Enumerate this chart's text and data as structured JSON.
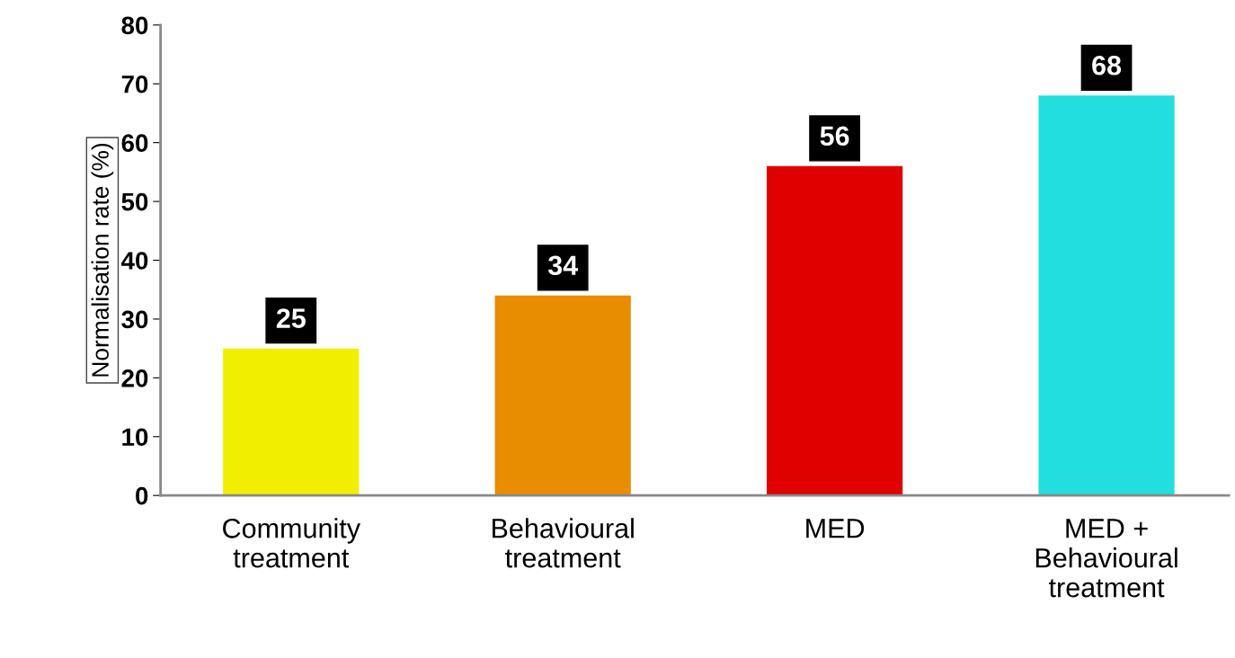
{
  "chart_data": {
    "type": "bar",
    "ylabel": "Normalisation rate (%)",
    "categories": [
      "Community\ntreatment",
      "Behavioural\ntreatment",
      "MED",
      "MED +\nBehavioural\ntreatment"
    ],
    "values": [
      25,
      34,
      56,
      68
    ],
    "colors": [
      "#f2ee00",
      "#e88c00",
      "#e00000",
      "#22dede"
    ],
    "ylim": [
      0,
      80
    ],
    "yticks": [
      0,
      10,
      20,
      30,
      40,
      50,
      60,
      70,
      80
    ],
    "grid": false,
    "data_labels": true
  }
}
